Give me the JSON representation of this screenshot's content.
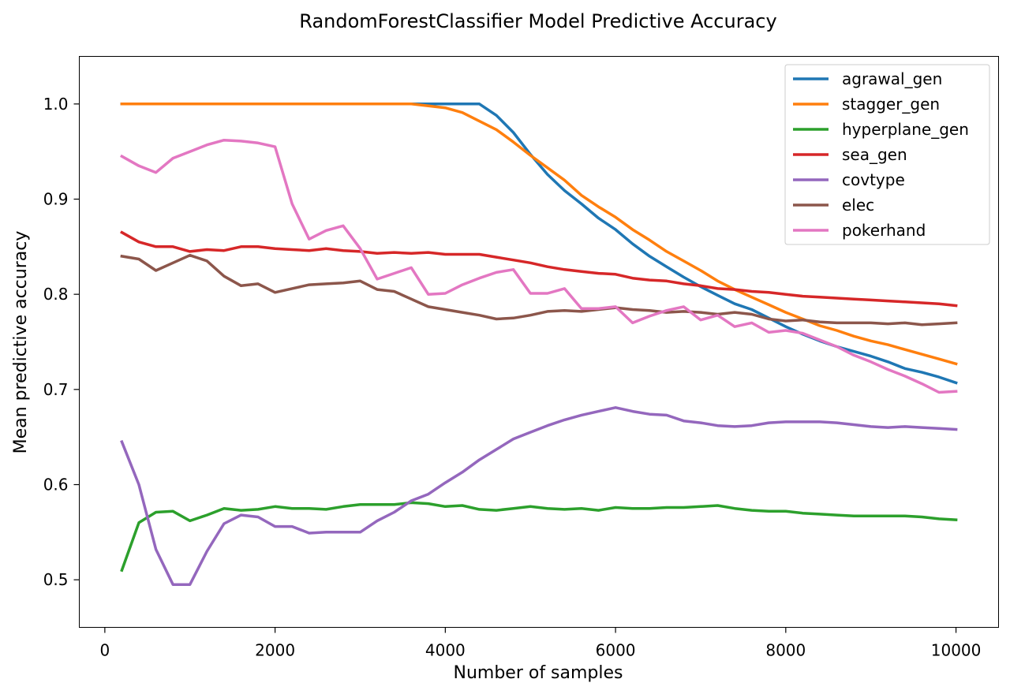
{
  "chart_data": {
    "type": "line",
    "title": "RandomForestClassifier Model Predictive Accuracy",
    "xlabel": "Number of samples",
    "ylabel": "Mean predictive accuracy",
    "xlim": [
      -300,
      10500
    ],
    "ylim": [
      0.45,
      1.05
    ],
    "xticks": [
      0,
      2000,
      4000,
      6000,
      8000,
      10000
    ],
    "xtick_labels": [
      "0",
      "2000",
      "4000",
      "6000",
      "8000",
      "10000"
    ],
    "yticks": [
      0.5,
      0.6,
      0.7,
      0.8,
      0.9,
      1.0
    ],
    "ytick_labels": [
      "0.5",
      "0.6",
      "0.7",
      "0.8",
      "0.9",
      "1.0"
    ],
    "grid": false,
    "legend_position": "top-right",
    "x": [
      200,
      400,
      600,
      800,
      1000,
      1200,
      1400,
      1600,
      1800,
      2000,
      2200,
      2400,
      2600,
      2800,
      3000,
      3200,
      3400,
      3600,
      3800,
      4000,
      4200,
      4400,
      4600,
      4800,
      5000,
      5200,
      5400,
      5600,
      5800,
      6000,
      6200,
      6400,
      6600,
      6800,
      7000,
      7200,
      7400,
      7600,
      7800,
      8000,
      8200,
      8400,
      8600,
      8800,
      9000,
      9200,
      9400,
      9600,
      9800,
      10000
    ],
    "series": [
      {
        "name": "agrawal_gen",
        "color": "#1f77b4",
        "values": [
          1.0,
          1.0,
          1.0,
          1.0,
          1.0,
          1.0,
          1.0,
          1.0,
          1.0,
          1.0,
          1.0,
          1.0,
          1.0,
          1.0,
          1.0,
          1.0,
          1.0,
          1.0,
          1.0,
          1.0,
          1.0,
          1.0,
          0.988,
          0.97,
          0.947,
          0.926,
          0.909,
          0.895,
          0.88,
          0.868,
          0.853,
          0.84,
          0.829,
          0.818,
          0.808,
          0.799,
          0.79,
          0.784,
          0.775,
          0.766,
          0.758,
          0.751,
          0.745,
          0.74,
          0.735,
          0.729,
          0.722,
          0.718,
          0.713,
          0.707
        ]
      },
      {
        "name": "stagger_gen",
        "color": "#ff7f0e",
        "values": [
          1.0,
          1.0,
          1.0,
          1.0,
          1.0,
          1.0,
          1.0,
          1.0,
          1.0,
          1.0,
          1.0,
          1.0,
          1.0,
          1.0,
          1.0,
          1.0,
          1.0,
          1.0,
          0.998,
          0.996,
          0.991,
          0.982,
          0.973,
          0.96,
          0.946,
          0.933,
          0.92,
          0.904,
          0.892,
          0.881,
          0.868,
          0.857,
          0.845,
          0.835,
          0.825,
          0.814,
          0.805,
          0.797,
          0.789,
          0.781,
          0.774,
          0.767,
          0.762,
          0.756,
          0.751,
          0.747,
          0.742,
          0.737,
          0.732,
          0.727
        ]
      },
      {
        "name": "hyperplane_gen",
        "color": "#2ca02c",
        "values": [
          0.51,
          0.56,
          0.571,
          0.572,
          0.562,
          0.568,
          0.575,
          0.573,
          0.574,
          0.577,
          0.575,
          0.575,
          0.574,
          0.577,
          0.579,
          0.579,
          0.579,
          0.581,
          0.58,
          0.577,
          0.578,
          0.574,
          0.573,
          0.575,
          0.577,
          0.575,
          0.574,
          0.575,
          0.573,
          0.576,
          0.575,
          0.575,
          0.576,
          0.576,
          0.577,
          0.578,
          0.575,
          0.573,
          0.572,
          0.572,
          0.57,
          0.569,
          0.568,
          0.567,
          0.567,
          0.567,
          0.567,
          0.566,
          0.564,
          0.563
        ]
      },
      {
        "name": "sea_gen",
        "color": "#d62728",
        "values": [
          0.865,
          0.855,
          0.85,
          0.85,
          0.845,
          0.847,
          0.846,
          0.85,
          0.85,
          0.848,
          0.847,
          0.846,
          0.848,
          0.846,
          0.845,
          0.843,
          0.844,
          0.843,
          0.844,
          0.842,
          0.842,
          0.842,
          0.839,
          0.836,
          0.833,
          0.829,
          0.826,
          0.824,
          0.822,
          0.821,
          0.817,
          0.815,
          0.814,
          0.811,
          0.809,
          0.806,
          0.805,
          0.803,
          0.802,
          0.8,
          0.798,
          0.797,
          0.796,
          0.795,
          0.794,
          0.793,
          0.792,
          0.791,
          0.79,
          0.788
        ]
      },
      {
        "name": "covtype",
        "color": "#9467bd",
        "values": [
          0.645,
          0.6,
          0.532,
          0.495,
          0.495,
          0.53,
          0.559,
          0.568,
          0.566,
          0.556,
          0.556,
          0.549,
          0.55,
          0.55,
          0.55,
          0.562,
          0.571,
          0.583,
          0.59,
          0.602,
          0.613,
          0.626,
          0.637,
          0.648,
          0.655,
          0.662,
          0.668,
          0.673,
          0.677,
          0.681,
          0.677,
          0.674,
          0.673,
          0.667,
          0.665,
          0.662,
          0.661,
          0.662,
          0.665,
          0.666,
          0.666,
          0.666,
          0.665,
          0.663,
          0.661,
          0.66,
          0.661,
          0.66,
          0.659,
          0.658
        ]
      },
      {
        "name": "elec",
        "color": "#8c564b",
        "values": [
          0.84,
          0.837,
          0.825,
          0.833,
          0.841,
          0.835,
          0.819,
          0.809,
          0.811,
          0.802,
          0.806,
          0.81,
          0.811,
          0.812,
          0.814,
          0.805,
          0.803,
          0.795,
          0.787,
          0.784,
          0.781,
          0.778,
          0.774,
          0.775,
          0.778,
          0.782,
          0.783,
          0.782,
          0.784,
          0.786,
          0.784,
          0.783,
          0.781,
          0.782,
          0.781,
          0.779,
          0.781,
          0.779,
          0.774,
          0.772,
          0.773,
          0.771,
          0.77,
          0.77,
          0.77,
          0.769,
          0.77,
          0.768,
          0.769,
          0.77
        ]
      },
      {
        "name": "pokerhand",
        "color": "#e377c2",
        "values": [
          0.945,
          0.935,
          0.928,
          0.943,
          0.95,
          0.957,
          0.962,
          0.961,
          0.959,
          0.955,
          0.895,
          0.858,
          0.867,
          0.872,
          0.848,
          0.816,
          0.822,
          0.828,
          0.8,
          0.801,
          0.81,
          0.817,
          0.823,
          0.826,
          0.801,
          0.801,
          0.806,
          0.785,
          0.785,
          0.787,
          0.77,
          0.777,
          0.783,
          0.787,
          0.773,
          0.778,
          0.766,
          0.77,
          0.76,
          0.762,
          0.759,
          0.752,
          0.745,
          0.736,
          0.729,
          0.721,
          0.714,
          0.706,
          0.697,
          0.698
        ]
      }
    ]
  }
}
